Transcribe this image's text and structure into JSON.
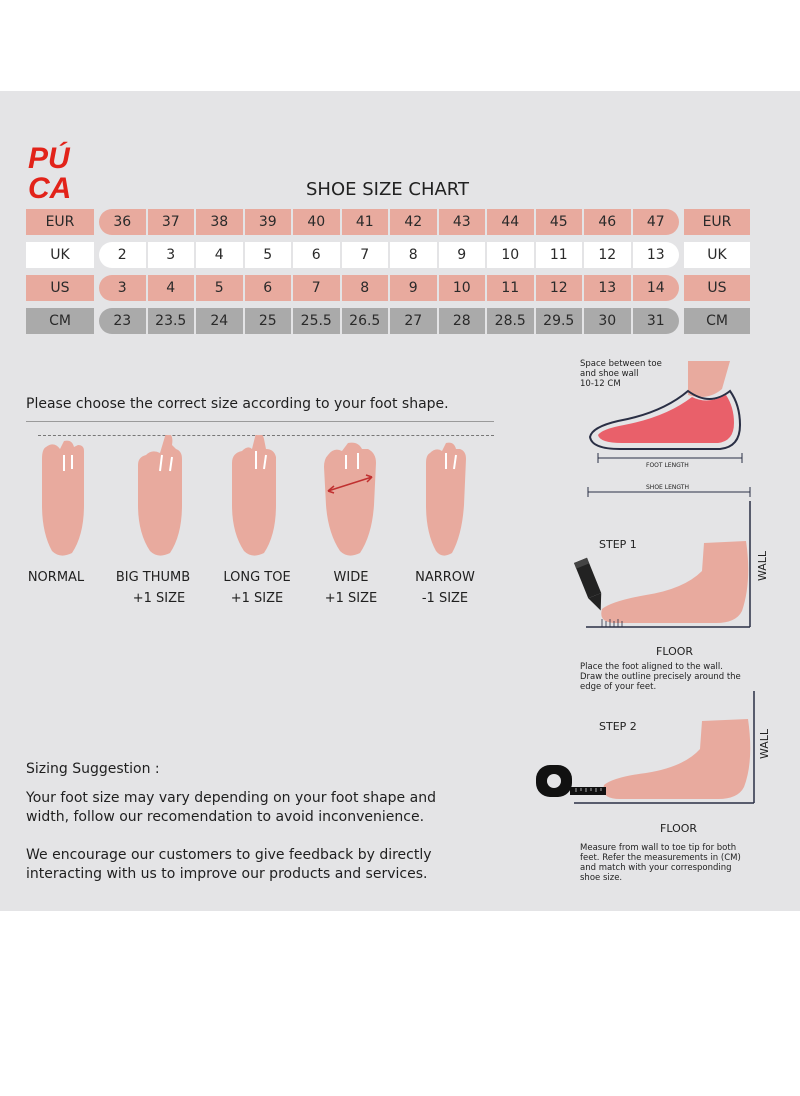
{
  "brand": {
    "line1": "PÚ",
    "line2": "CA",
    "color": "#e2231a"
  },
  "title": "SHOE SIZE CHART",
  "table": {
    "rows": [
      {
        "label": "EUR",
        "values": [
          "36",
          "37",
          "38",
          "39",
          "40",
          "41",
          "42",
          "43",
          "44",
          "45",
          "46",
          "47"
        ]
      },
      {
        "label": "UK",
        "values": [
          "2",
          "3",
          "4",
          "5",
          "6",
          "7",
          "8",
          "9",
          "10",
          "11",
          "12",
          "13"
        ]
      },
      {
        "label": "US",
        "values": [
          "3",
          "4",
          "5",
          "6",
          "7",
          "8",
          "9",
          "10",
          "11",
          "12",
          "13",
          "14"
        ]
      },
      {
        "label": "CM",
        "values": [
          "23",
          "23.5",
          "24",
          "25",
          "25.5",
          "26.5",
          "27",
          "28",
          "28.5",
          "29.5",
          "30",
          "31"
        ]
      }
    ]
  },
  "instruction": "Please choose the correct size according to your foot shape.",
  "foot_shapes": [
    {
      "name": "NORMAL",
      "adjust": ""
    },
    {
      "name": "BIG THUMB",
      "adjust": "+1 SIZE"
    },
    {
      "name": "LONG TOE",
      "adjust": "+1 SIZE"
    },
    {
      "name": "WIDE",
      "adjust": "+1 SIZE"
    },
    {
      "name": "NARROW",
      "adjust": "-1 SIZE"
    }
  ],
  "diagram": {
    "toe_space": "Space between toe\nand shoe wall\n10-12 CM",
    "foot_length": "FOOT LENGTH",
    "shoe_length": "SHOE LENGTH"
  },
  "step1": {
    "title": "STEP 1",
    "wall": "WALL",
    "floor": "FLOOR",
    "desc": "Place the foot aligned to the wall.\nDraw the outline precisely around the\nedge of your feet."
  },
  "step2": {
    "title": "STEP 2",
    "wall": "WALL",
    "floor": "FLOOR",
    "desc": "Measure from wall to toe tip for both\nfeet. Refer the measurements in (CM)\nand match with your corresponding\nshoe size."
  },
  "sizing": {
    "title": "Sizing Suggestion :",
    "para1": "Your foot size may vary depending on your foot shape and width, follow our recomendation to avoid inconvenience.",
    "para2": "We encourage our customers to give feedback by directly interacting with us to improve our products and services."
  },
  "colors": {
    "salmon": "#e8aa9e",
    "grey": "#aaaaaa",
    "panel": "#e4e4e6",
    "foot": "#e8aa9e",
    "foot_inner": "#e9606a"
  }
}
